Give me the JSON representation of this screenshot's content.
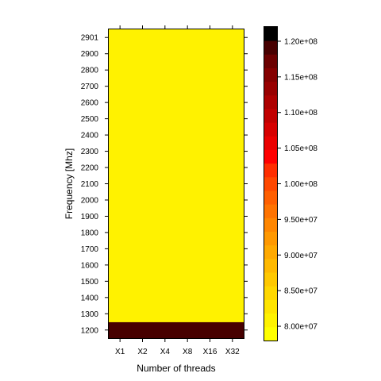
{
  "chart_data": {
    "type": "heatmap",
    "title": "",
    "xlabel": "Number of threads",
    "ylabel": "Frequency [Mhz]",
    "x_categories": [
      "X1",
      "X2",
      "X4",
      "X8",
      "X16",
      "X32"
    ],
    "y_categories": [
      "1200",
      "1300",
      "1400",
      "1500",
      "1600",
      "1700",
      "1800",
      "1900",
      "2000",
      "2100",
      "2200",
      "2300",
      "2400",
      "2500",
      "2600",
      "2700",
      "2800",
      "2900",
      "2901"
    ],
    "values": [
      [
        120000000,
        120000000,
        120000000,
        120000000,
        120000000,
        120000000
      ],
      [
        80000000,
        80000000,
        80000000,
        80000000,
        80000000,
        80000000
      ],
      [
        80000000,
        80000000,
        80000000,
        80000000,
        80000000,
        80000000
      ],
      [
        80000000,
        80000000,
        80000000,
        80000000,
        80000000,
        80000000
      ],
      [
        80000000,
        80000000,
        80000000,
        80000000,
        80000000,
        80000000
      ],
      [
        80000000,
        80000000,
        80000000,
        80000000,
        80000000,
        80000000
      ],
      [
        80000000,
        80000000,
        80000000,
        80000000,
        80000000,
        80000000
      ],
      [
        80000000,
        80000000,
        80000000,
        80000000,
        80000000,
        80000000
      ],
      [
        80000000,
        80000000,
        80000000,
        80000000,
        80000000,
        80000000
      ],
      [
        80000000,
        80000000,
        80000000,
        80000000,
        80000000,
        80000000
      ],
      [
        80000000,
        80000000,
        80000000,
        80000000,
        80000000,
        80000000
      ],
      [
        80000000,
        80000000,
        80000000,
        80000000,
        80000000,
        80000000
      ],
      [
        80000000,
        80000000,
        80000000,
        80000000,
        80000000,
        80000000
      ],
      [
        80000000,
        80000000,
        80000000,
        80000000,
        80000000,
        80000000
      ],
      [
        80000000,
        80000000,
        80000000,
        80000000,
        80000000,
        80000000
      ],
      [
        80000000,
        80000000,
        80000000,
        80000000,
        80000000,
        80000000
      ],
      [
        80000000,
        80000000,
        80000000,
        80000000,
        80000000,
        80000000
      ],
      [
        80000000,
        80000000,
        80000000,
        80000000,
        80000000,
        80000000
      ],
      [
        80000000,
        80000000,
        80000000,
        80000000,
        80000000,
        80000000
      ]
    ],
    "colorbar": {
      "range": [
        78000000,
        122000000
      ],
      "ticks": [
        80000000,
        85000000,
        90000000,
        95000000,
        100000000,
        105000000,
        110000000,
        115000000,
        120000000
      ],
      "tick_labels": [
        "8.00e+07",
        "8.50e+07",
        "9.00e+07",
        "9.50e+07",
        "1.00e+08",
        "1.05e+08",
        "1.10e+08",
        "1.15e+08",
        "1.20e+08"
      ],
      "colors": [
        "#FFFF00",
        "#FFF200",
        "#FFE500",
        "#FFD700",
        "#FFC800",
        "#FFB900",
        "#FFA900",
        "#FF9800",
        "#FF8600",
        "#FF7300",
        "#FF5F00",
        "#FF4800",
        "#FF2E00",
        "#FF0000",
        "#EA0000",
        "#D60000",
        "#C10000",
        "#AD0000",
        "#980000",
        "#840000",
        "#6B0000",
        "#470000",
        "#000000"
      ]
    },
    "grid": false,
    "legend": "right"
  }
}
